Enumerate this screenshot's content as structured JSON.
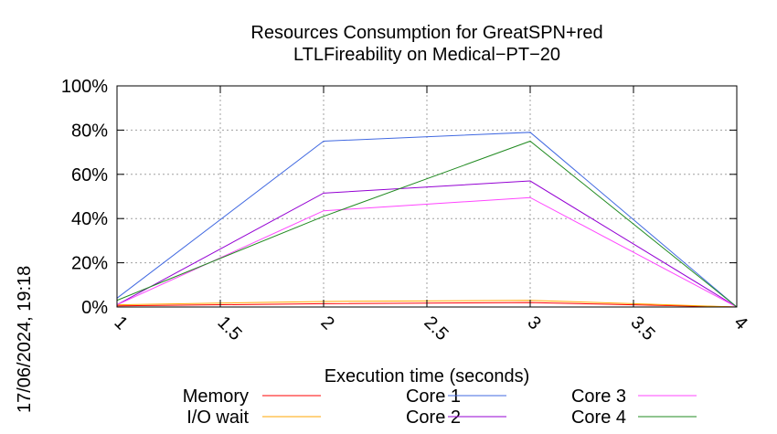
{
  "timestamp": "17/06/2024, 19:18",
  "chart_data": {
    "type": "line",
    "title": [
      "Resources Consumption for GreatSPN+red",
      "LTLFireability on Medical−PT−20"
    ],
    "xlabel": "Execution time (seconds)",
    "ylabel": "",
    "xlim": [
      1,
      4
    ],
    "ylim": [
      0,
      100
    ],
    "x_ticks": [
      "1",
      "1.5",
      "2",
      "2.5",
      "3",
      "3.5",
      "4"
    ],
    "x_tick_values": [
      1,
      1.5,
      2,
      2.5,
      3,
      3.5,
      4
    ],
    "y_ticks": [
      "0%",
      "20%",
      "40%",
      "60%",
      "80%",
      "100%"
    ],
    "y_tick_values": [
      0,
      20,
      40,
      60,
      80,
      100
    ],
    "grid": true,
    "legend_position": "bottom",
    "series": [
      {
        "name": "Memory",
        "color": "#ff0000",
        "x": [
          1,
          2,
          3,
          4
        ],
        "y": [
          0.5,
          1.5,
          2,
          0
        ]
      },
      {
        "name": "I/O wait",
        "color": "#ffa500",
        "x": [
          1,
          2,
          3,
          4
        ],
        "y": [
          1,
          2.5,
          3,
          0
        ]
      },
      {
        "name": "Core 1",
        "color": "#4169e1",
        "x": [
          1,
          2,
          3,
          4
        ],
        "y": [
          4,
          75,
          79,
          0
        ]
      },
      {
        "name": "Core 2",
        "color": "#9400d3",
        "x": [
          1,
          2,
          3,
          4
        ],
        "y": [
          1,
          51.5,
          57,
          0
        ]
      },
      {
        "name": "Core 3",
        "color": "#ff44ff",
        "x": [
          1,
          2,
          3,
          4
        ],
        "y": [
          1,
          43.5,
          49.5,
          0
        ]
      },
      {
        "name": "Core 4",
        "color": "#228b22",
        "x": [
          1,
          2,
          3,
          4
        ],
        "y": [
          3,
          41,
          75,
          0
        ]
      }
    ]
  }
}
